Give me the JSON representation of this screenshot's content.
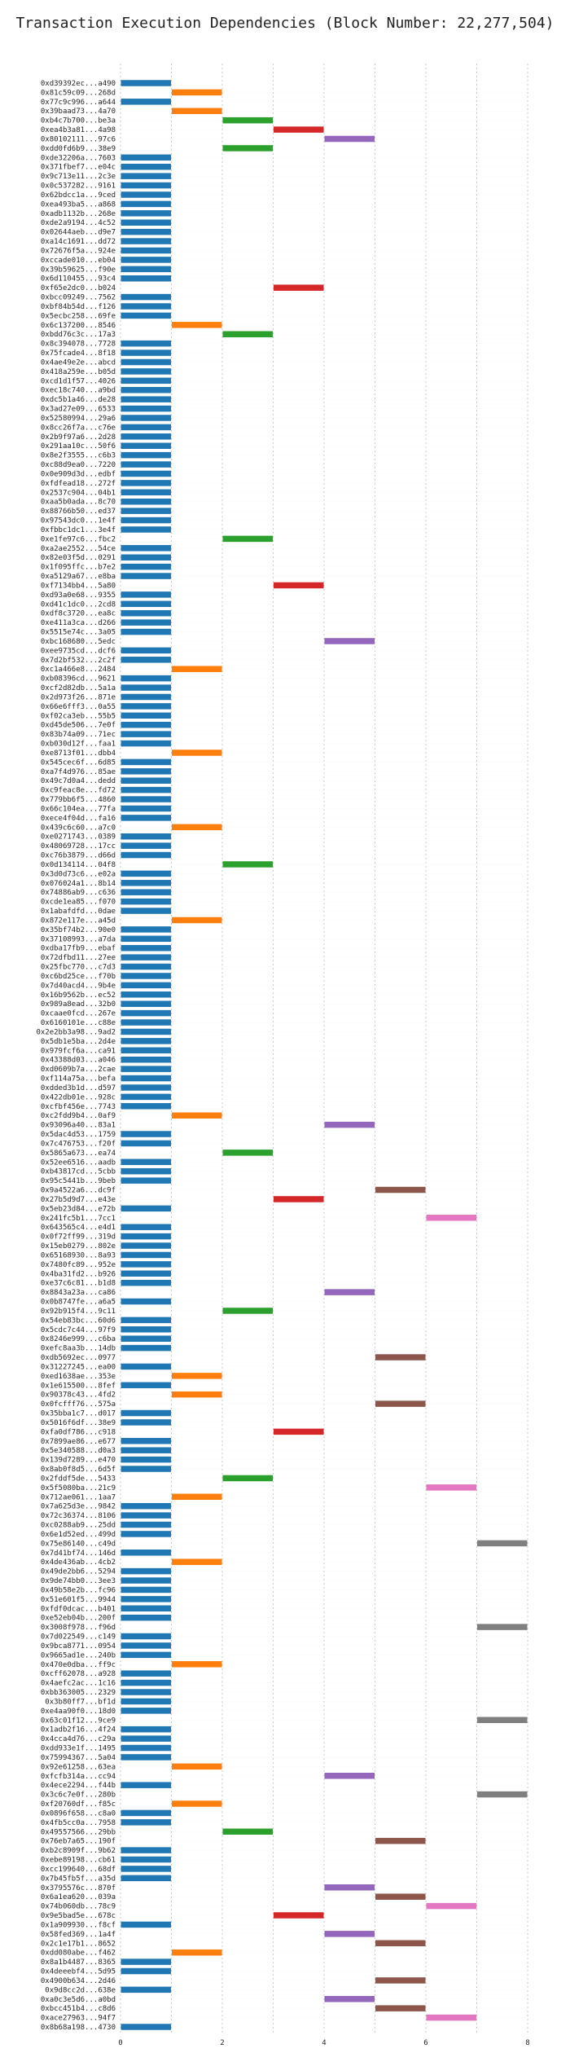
{
  "chart_data": {
    "type": "bar",
    "orientation": "horizontal",
    "title": "Transaction Execution Dependencies (Block Number: 22,277,504)",
    "xlabel": "",
    "ylabel": "",
    "xlim": [
      0,
      8
    ],
    "xticks": [
      0,
      2,
      4,
      6,
      8
    ],
    "grid": true,
    "legend": "none",
    "palette": [
      "#1f77b4",
      "#ff7f0e",
      "#2ca02c",
      "#d62728",
      "#9467bd",
      "#8c564b",
      "#e377c2",
      "#7f7f7f",
      "#bcbd22",
      "#17becf"
    ],
    "transactions": [
      [
        "0xd39392ec...a490",
        0
      ],
      [
        "0x81c59c09...268d",
        1
      ],
      [
        "0x77c9c996...a644",
        0
      ],
      [
        "0x39baad73...4a70",
        1
      ],
      [
        "0xb4c7b700...be3a",
        2
      ],
      [
        "0xea4b3a81...4a98",
        3
      ],
      [
        "0x80102111...97c6",
        4
      ],
      [
        "0xdd0fd6b9...38e9",
        2
      ],
      [
        "0xde32206a...7603",
        0
      ],
      [
        "0x371fbef7...e04c",
        0
      ],
      [
        "0x9c713e11...2c3e",
        0
      ],
      [
        "0x0c537282...9161",
        0
      ],
      [
        "0x62bdcc1a...9ced",
        0
      ],
      [
        "0xea493ba5...a868",
        0
      ],
      [
        "0xadb1132b...268e",
        0
      ],
      [
        "0xde2a9194...4c52",
        0
      ],
      [
        "0x02644aeb...d9e7",
        0
      ],
      [
        "0xa14c1691...dd72",
        0
      ],
      [
        "0x72676f5a...924e",
        0
      ],
      [
        "0xccade010...eb04",
        0
      ],
      [
        "0x39b59625...f90e",
        0
      ],
      [
        "0x6d110455...93c4",
        0
      ],
      [
        "0xf65e2dc0...b024",
        3
      ],
      [
        "0xbcc09249...7562",
        0
      ],
      [
        "0xbf84b54d...f126",
        0
      ],
      [
        "0x5ecbc258...69fe",
        0
      ],
      [
        "0x6c137200...8546",
        1
      ],
      [
        "0xbdd76c3c...17a3",
        2
      ],
      [
        "0x8c394078...7728",
        0
      ],
      [
        "0x75fcade4...8f18",
        0
      ],
      [
        "0x4ae49e2e...abcd",
        0
      ],
      [
        "0x418a259e...b05d",
        0
      ],
      [
        "0xcd1d1f57...4026",
        0
      ],
      [
        "0xec18c740...a9bd",
        0
      ],
      [
        "0xdc5b1a46...de28",
        0
      ],
      [
        "0x3ad27e09...6533",
        0
      ],
      [
        "0x52580994...29a6",
        0
      ],
      [
        "0x8cc26f7a...c76e",
        0
      ],
      [
        "0x2b9f97a6...2d28",
        0
      ],
      [
        "0x291aa10c...50f6",
        0
      ],
      [
        "0x8e2f3555...c6b3",
        0
      ],
      [
        "0xc88d9ea0...7220",
        0
      ],
      [
        "0x0e909d3d...edbf",
        0
      ],
      [
        "0xfdfead18...272f",
        0
      ],
      [
        "0x2537c904...04b1",
        0
      ],
      [
        "0xaa5b0ada...8c70",
        0
      ],
      [
        "0x88766b50...ed37",
        0
      ],
      [
        "0x97543dc0...1e4f",
        0
      ],
      [
        "0xfbbc1dc1...3e4f",
        0
      ],
      [
        "0xe1fe97c6...fbc2",
        2
      ],
      [
        "0xa2ae2552...54ce",
        0
      ],
      [
        "0x82e03f5d...0291",
        0
      ],
      [
        "0x1f095ffc...b7e2",
        0
      ],
      [
        "0xa5129a67...e8ba",
        0
      ],
      [
        "0xf7134bb4...5a80",
        3
      ],
      [
        "0xd93a0e68...9355",
        0
      ],
      [
        "0xd41c1dc0...2cd8",
        0
      ],
      [
        "0xdf8c3720...ea8c",
        0
      ],
      [
        "0xe411a3ca...d266",
        0
      ],
      [
        "0x5515e74c...3a05",
        0
      ],
      [
        "0xbc168680...5edc",
        4
      ],
      [
        "0xee9735cd...dcf6",
        0
      ],
      [
        "0x7d2bf532...2c2f",
        0
      ],
      [
        "0xc1a466e8...2484",
        1
      ],
      [
        "0xb08396cd...9621",
        0
      ],
      [
        "0xcf2d82db...5a1a",
        0
      ],
      [
        "0x2d973f26...871e",
        0
      ],
      [
        "0x66e6fff3...0a55",
        0
      ],
      [
        "0xf02ca3eb...55b5",
        0
      ],
      [
        "0xd45de506...7e0f",
        0
      ],
      [
        "0x83b74a09...71ec",
        0
      ],
      [
        "0xb030d12f...faa1",
        0
      ],
      [
        "0xe8713f01...dbb4",
        1
      ],
      [
        "0x545cec6f...6d85",
        0
      ],
      [
        "0xa7f4d976...85ae",
        0
      ],
      [
        "0x49c7d0a4...dedd",
        0
      ],
      [
        "0xc9feac8e...fd72",
        0
      ],
      [
        "0x779bb6f5...4860",
        0
      ],
      [
        "0x66c104ea...77fa",
        0
      ],
      [
        "0xece4f04d...fa16",
        0
      ],
      [
        "0x439c6c60...a7c0",
        1
      ],
      [
        "0xe0271743...0389",
        0
      ],
      [
        "0x48069728...17cc",
        0
      ],
      [
        "0xc76b3879...d66d",
        0
      ],
      [
        "0x0d134114...04f8",
        2
      ],
      [
        "0x3d0d73c6...e02a",
        0
      ],
      [
        "0x076024a1...8b14",
        0
      ],
      [
        "0x74886ab9...c636",
        0
      ],
      [
        "0xcde1ea85...f070",
        0
      ],
      [
        "0x1abafdfd...0dae",
        0
      ],
      [
        "0x872e117e...a45d",
        1
      ],
      [
        "0x35bf74b2...90e0",
        0
      ],
      [
        "0x37108993...a7da",
        0
      ],
      [
        "0xdba17fb9...ebaf",
        0
      ],
      [
        "0x72dfbd11...27ee",
        0
      ],
      [
        "0x25fbc770...c7d3",
        0
      ],
      [
        "0xc6bd25ce...f70b",
        0
      ],
      [
        "0x7d40acd4...9b4e",
        0
      ],
      [
        "0x16b9562b...ec52",
        0
      ],
      [
        "0x989a8ead...32b0",
        0
      ],
      [
        "0xcaae0fcd...267e",
        0
      ],
      [
        "0x6160101e...c88e",
        0
      ],
      [
        "0x2e2bb3a98...9ad2",
        0
      ],
      [
        "0x5db1e5ba...2d4e",
        0
      ],
      [
        "0x979fcf6a...ca91",
        0
      ],
      [
        "0x43388d03...a046",
        0
      ],
      [
        "0xd0609b7a...2cae",
        0
      ],
      [
        "0xf114a75a...befa",
        0
      ],
      [
        "0xdded3b1d...d597",
        0
      ],
      [
        "0x422db01e...928c",
        0
      ],
      [
        "0xcfbf456e...7743",
        0
      ],
      [
        "0xc2fdd9b4...0af9",
        1
      ],
      [
        "0x93096a40...83a1",
        4
      ],
      [
        "0x5dac4d53...1759",
        0
      ],
      [
        "0x7c476753...f20f",
        0
      ],
      [
        "0x5865a673...ea74",
        2
      ],
      [
        "0x52ee6516...aadb",
        0
      ],
      [
        "0xb43817cd...5cbb",
        0
      ],
      [
        "0x95c5441b...9beb",
        0
      ],
      [
        "0x9a4522a6...dc9f",
        5
      ],
      [
        "0x27b5d9d7...e43e",
        3
      ],
      [
        "0x5eb23d84...e72b",
        0
      ],
      [
        "0x241fc5b1...7cc1",
        6
      ],
      [
        "0x643565c4...e4d1",
        0
      ],
      [
        "0x0f72ff99...319d",
        0
      ],
      [
        "0x15eb0279...802e",
        0
      ],
      [
        "0x65168930...8a93",
        0
      ],
      [
        "0x7480fc89...952e",
        0
      ],
      [
        "0x4ba31fd2...b926",
        0
      ],
      [
        "0xe37c6c81...b1d8",
        0
      ],
      [
        "0x8843a23a...ca86",
        4
      ],
      [
        "0x0b8747fe...a6a5",
        0
      ],
      [
        "0x92b915f4...9c11",
        2
      ],
      [
        "0x54eb83bc...60d6",
        0
      ],
      [
        "0x5cdc7c44...97f9",
        0
      ],
      [
        "0x8246e999...c6ba",
        0
      ],
      [
        "0xefc8aa3b...14db",
        0
      ],
      [
        "0xdb5692ec...0977",
        5
      ],
      [
        "0x31227245...ea00",
        0
      ],
      [
        "0xed1638ae...353e",
        1
      ],
      [
        "0x1e615500...8fef",
        0
      ],
      [
        "0x90378c43...4fd2",
        1
      ],
      [
        "0x0fcfff76...575a",
        5
      ],
      [
        "0x35bba1c7...d017",
        0
      ],
      [
        "0x5016f6df...38e9",
        0
      ],
      [
        "0xfa0df786...c918",
        3
      ],
      [
        "0x7899ae86...e677",
        0
      ],
      [
        "0x5e340588...d0a3",
        0
      ],
      [
        "0x139d7289...e470",
        0
      ],
      [
        "0x8ab0f8d5...6d5f",
        0
      ],
      [
        "0x2fddf5de...5433",
        2
      ],
      [
        "0x5f5080ba...21c9",
        6
      ],
      [
        "0x712ae061...1aa7",
        1
      ],
      [
        "0x7a625d3e...9842",
        0
      ],
      [
        "0x72c36374...8106",
        0
      ],
      [
        "0xc0288ab9...25dd",
        0
      ],
      [
        "0x6e1d52ed...499d",
        0
      ],
      [
        "0x75e86140...c49d",
        7
      ],
      [
        "0x7d41bf74...146d",
        0
      ],
      [
        "0x4de436ab...4cb2",
        1
      ],
      [
        "0x49de2bb6...5294",
        0
      ],
      [
        "0x9de74bb0...3ee3",
        0
      ],
      [
        "0x49b58e2b...fc96",
        0
      ],
      [
        "0x51e601f5...9944",
        0
      ],
      [
        "0xfdf0dcac...b401",
        0
      ],
      [
        "0xe52eb04b...200f",
        0
      ],
      [
        "0x3008f978...f96d",
        7
      ],
      [
        "0x7d022549...c149",
        0
      ],
      [
        "0x9bca8771...0954",
        0
      ],
      [
        "0x9665ad1e...240b",
        0
      ],
      [
        "0x470e0dba...ff9c",
        1
      ],
      [
        "0xcff62078...a928",
        0
      ],
      [
        "0x4aefc2ac...1c16",
        0
      ],
      [
        "0xbb363005...2329",
        0
      ],
      [
        "0x3b80ff7...bf1d",
        0
      ],
      [
        "0xe4aa90f0...18d0",
        0
      ],
      [
        "0x63c01f12...9ce9",
        7
      ],
      [
        "0x1adb2f16...4f24",
        0
      ],
      [
        "0x4cca4d76...c29a",
        0
      ],
      [
        "0xdd933e1f...1495",
        0
      ],
      [
        "0x75994367...5a04",
        0
      ],
      [
        "0x92e61258...63ea",
        1
      ],
      [
        "0xfcfb314a...cc94",
        4
      ],
      [
        "0x4ece2294...f44b",
        0
      ],
      [
        "0x3c6c7e0f...280b",
        7
      ],
      [
        "0xf20760df...f85c",
        1
      ],
      [
        "0x0896f658...c8a0",
        0
      ],
      [
        "0x4fb5cc0a...7958",
        0
      ],
      [
        "0x49557566...29bb",
        2
      ],
      [
        "0x76eb7a65...190f",
        5
      ],
      [
        "0xb2c8909f...9b62",
        0
      ],
      [
        "0xebe89198...cb61",
        0
      ],
      [
        "0xcc199640...68df",
        0
      ],
      [
        "0x7b45fb5f...a35d",
        0
      ],
      [
        "0x3795576c...870f",
        4
      ],
      [
        "0x6a1ea620...039a",
        5
      ],
      [
        "0x74b060db...78c9",
        6
      ],
      [
        "0x9e5bad5e...678c",
        3
      ],
      [
        "0x1a909930...f8cf",
        0
      ],
      [
        "0x58fed369...1a4f",
        4
      ],
      [
        "0x2c1e17b1...8652",
        5
      ],
      [
        "0xdd080abe...f462",
        1
      ],
      [
        "0x8a1b4487...8365",
        0
      ],
      [
        "0x4deeebf4...5d95",
        0
      ],
      [
        "0x4900b634...2d46",
        5
      ],
      [
        "0x9d8cc2d...638e",
        0
      ],
      [
        "0xa0c3e5d6...a0bd",
        4
      ],
      [
        "0xbcc451b4...c8d6",
        5
      ],
      [
        "0xace27963...94f7",
        6
      ],
      [
        "0x8b68a198...4730",
        0
      ]
    ]
  }
}
